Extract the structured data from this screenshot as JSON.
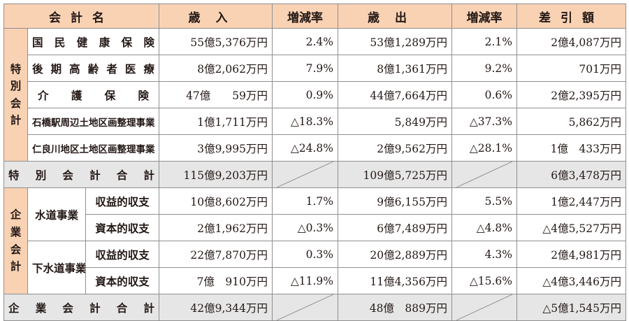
{
  "header": {
    "account": "会計名",
    "revenue": "歳入",
    "rev_rate": "増減率",
    "expenditure": "歳出",
    "exp_rate": "増減率",
    "balance": "差引額"
  },
  "special": {
    "group_label": "特別会計",
    "rows": [
      {
        "name": "国民健康保険",
        "revenue": "55億5,376万円",
        "rev_rate": "2.4%",
        "expenditure": "53億1,289万円",
        "exp_rate": "2.1%",
        "balance": "2億4,087万円"
      },
      {
        "name": "後期高齢者医療",
        "revenue": "8億2,062万円",
        "rev_rate": "7.9%",
        "expenditure": "8億1,361万円",
        "exp_rate": "9.2%",
        "balance": "701万円"
      },
      {
        "name": "介護保険",
        "revenue": "47億　　59万円",
        "rev_rate": "0.9%",
        "expenditure": "44億7,664万円",
        "exp_rate": "0.6%",
        "balance": "2億2,395万円"
      },
      {
        "name": "石橋駅周辺土地区画整理事業",
        "revenue": "1億1,711万円",
        "rev_rate": "△18.3%",
        "expenditure": "5,849万円",
        "exp_rate": "△37.3%",
        "balance": "5,862万円"
      },
      {
        "name": "仁良川地区土地区画整理事業",
        "revenue": "3億9,995万円",
        "rev_rate": "△24.8%",
        "expenditure": "2億9,562万円",
        "exp_rate": "△28.1%",
        "balance": "1億　433万円"
      }
    ],
    "total": {
      "label": "特別会計合計",
      "revenue": "115億9,203万円",
      "expenditure": "109億5,725万円",
      "balance": "6億3,478万円"
    }
  },
  "enterprise": {
    "group_label": "企業会計",
    "water": {
      "name": "水道事業",
      "rows": [
        {
          "sub": "収益的収支",
          "revenue": "10億8,602万円",
          "rev_rate": "1.7%",
          "expenditure": "9億6,155万円",
          "exp_rate": "5.5%",
          "balance": "1億2,447万円"
        },
        {
          "sub": "資本的収支",
          "revenue": "2億1,962万円",
          "rev_rate": "△0.3%",
          "expenditure": "6億7,489万円",
          "exp_rate": "△4.8%",
          "balance": "△4億5,527万円"
        }
      ]
    },
    "sewer": {
      "name": "下水道事業",
      "rows": [
        {
          "sub": "収益的収支",
          "revenue": "22億7,870万円",
          "rev_rate": "0.3%",
          "expenditure": "20億2,889万円",
          "exp_rate": "4.3%",
          "balance": "2億4,981万円"
        },
        {
          "sub": "資本的収支",
          "revenue": "7億　910万円",
          "rev_rate": "△11.9%",
          "expenditure": "11億4,356万円",
          "exp_rate": "△15.6%",
          "balance": "△4億3,446万円"
        }
      ]
    },
    "total": {
      "label": "企業会計合計",
      "revenue": "42億9,344万円",
      "expenditure": "48億　889万円",
      "balance": "△5億1,545万円"
    }
  },
  "colors": {
    "header_bg": "#f9d2b4",
    "total_bg": "#e6e6e6",
    "border": "#8f8f8f",
    "text": "#231815"
  }
}
